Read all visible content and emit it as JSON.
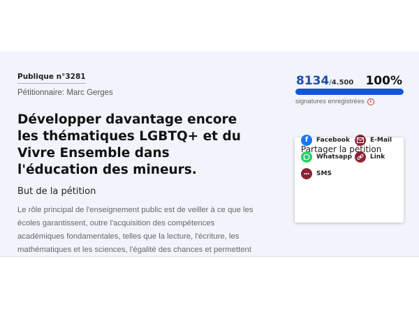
{
  "petition": {
    "publication_label": "Publique n°3281",
    "petitioner": "Pétitionnaire: Marc Gerges",
    "title": "Développer davantage encore les thématiques LGBTQ+ et du Vivre Ensemble dans l'éducation des mineurs.",
    "goal_heading": "But de la pétition",
    "goal_text": "Le rôle principal de l'enseignement public est de veiller à ce que les écoles garantissent, outre l'acquisition des compétences académiques fondamentales, telles que la lecture, l'écriture, les mathématiques et les sciences, l'égalité des chances et permettent aux enfants de devenir des citoyens responsables, capables de se"
  },
  "signatures": {
    "count": "8134",
    "target": "4.500",
    "separator": "/",
    "percent": "100%",
    "progress": 1.0,
    "label": "signatures enregistrées",
    "bar_color": "#1554d8"
  },
  "share": {
    "title": "Partager la pétition",
    "items": [
      {
        "label": "Facebook",
        "icon": "facebook-icon",
        "color": "#1877f2"
      },
      {
        "label": "E-Mail",
        "icon": "mail-icon",
        "color": "#8b2335"
      },
      {
        "label": "Whatsapp",
        "icon": "whatsapp-icon",
        "color": "#25d366"
      },
      {
        "label": "Link",
        "icon": "link-icon",
        "color": "#8b2335"
      },
      {
        "label": "SMS",
        "icon": "sms-icon",
        "color": "#8b2335"
      }
    ]
  }
}
